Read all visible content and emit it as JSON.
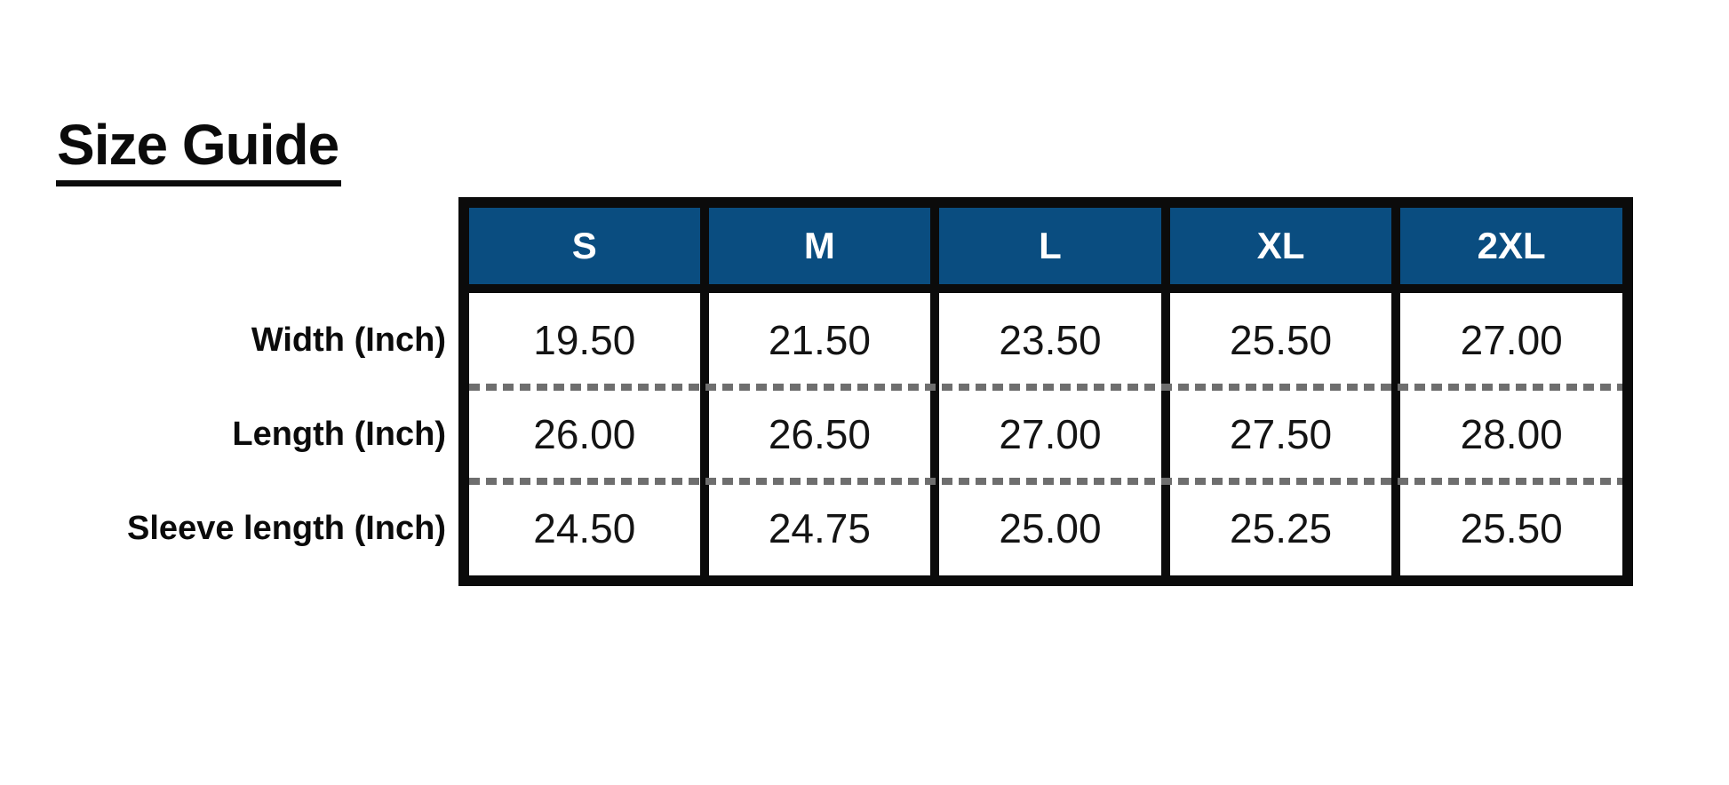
{
  "page": {
    "title": "Size Guide"
  },
  "table": {
    "columns": [
      "S",
      "M",
      "L",
      "XL",
      "2XL"
    ],
    "rows": [
      {
        "label": "Width (Inch)",
        "values": [
          "19.50",
          "21.50",
          "23.50",
          "25.50",
          "27.00"
        ]
      },
      {
        "label": "Length (Inch)",
        "values": [
          "26.00",
          "26.50",
          "27.00",
          "27.50",
          "28.00"
        ]
      },
      {
        "label": "Sleeve length (Inch)",
        "values": [
          "24.50",
          "24.75",
          "25.00",
          "25.25",
          "25.50"
        ]
      }
    ],
    "colors": {
      "header_background": "#0a4d80",
      "header_text": "#ffffff",
      "grid_border": "#0b0b0b",
      "dashed_divider": "#6e6e6e",
      "body_text": "#141414"
    }
  }
}
